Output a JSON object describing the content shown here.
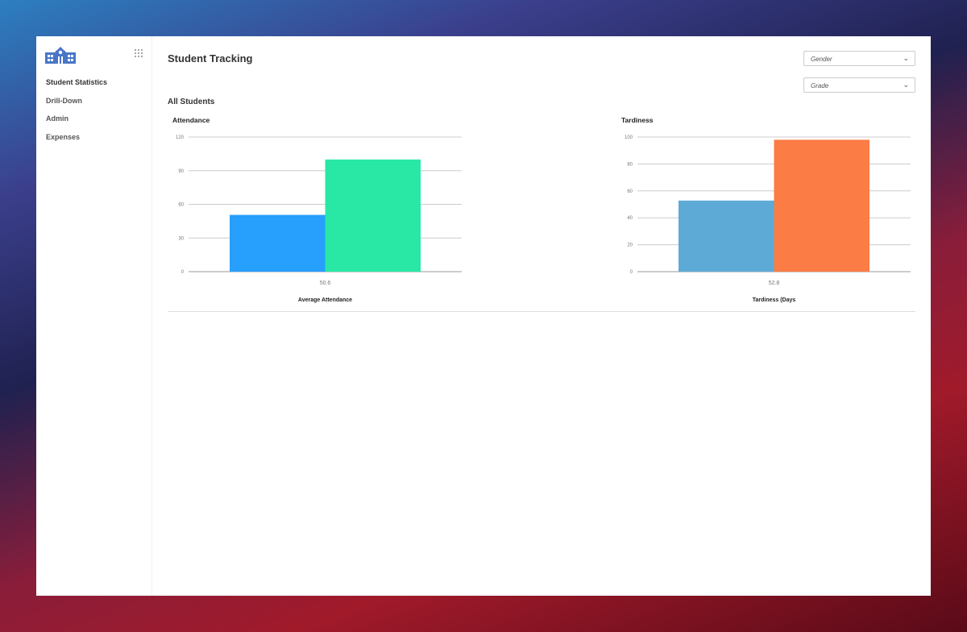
{
  "sidebar": {
    "items": [
      {
        "label": "Student Statistics",
        "active": true
      },
      {
        "label": "Drill-Down"
      },
      {
        "label": "Admin"
      },
      {
        "label": "Expenses"
      }
    ],
    "logo_icon": "school-building-icon",
    "menu_icon": "grid-dots-icon"
  },
  "header": {
    "title": "Student Tracking"
  },
  "filters": {
    "gender": {
      "value": "Gender"
    },
    "grade": {
      "value": "Grade"
    }
  },
  "section": {
    "title": "All Students"
  },
  "chart_data": [
    {
      "type": "bar",
      "title": "Attendance",
      "xlabel": "Average Attendance",
      "categories": [
        "50.6"
      ],
      "ylim": [
        0,
        120
      ],
      "yticks": [
        0,
        30,
        60,
        90,
        120
      ],
      "grid": true,
      "series": [
        {
          "values": [
            50.6
          ],
          "color": "#279ffc"
        },
        {
          "values": [
            100
          ],
          "color": "#29e8a6"
        }
      ]
    },
    {
      "type": "bar",
      "title": "Tardiness",
      "xlabel": "Tardiness (Days",
      "categories": [
        "52.8"
      ],
      "ylim": [
        0,
        100
      ],
      "yticks": [
        0,
        20,
        40,
        60,
        80,
        100
      ],
      "grid": true,
      "series": [
        {
          "values": [
            52.8
          ],
          "color": "#5eaad6"
        },
        {
          "values": [
            98
          ],
          "color": "#fb7c45"
        }
      ]
    }
  ]
}
